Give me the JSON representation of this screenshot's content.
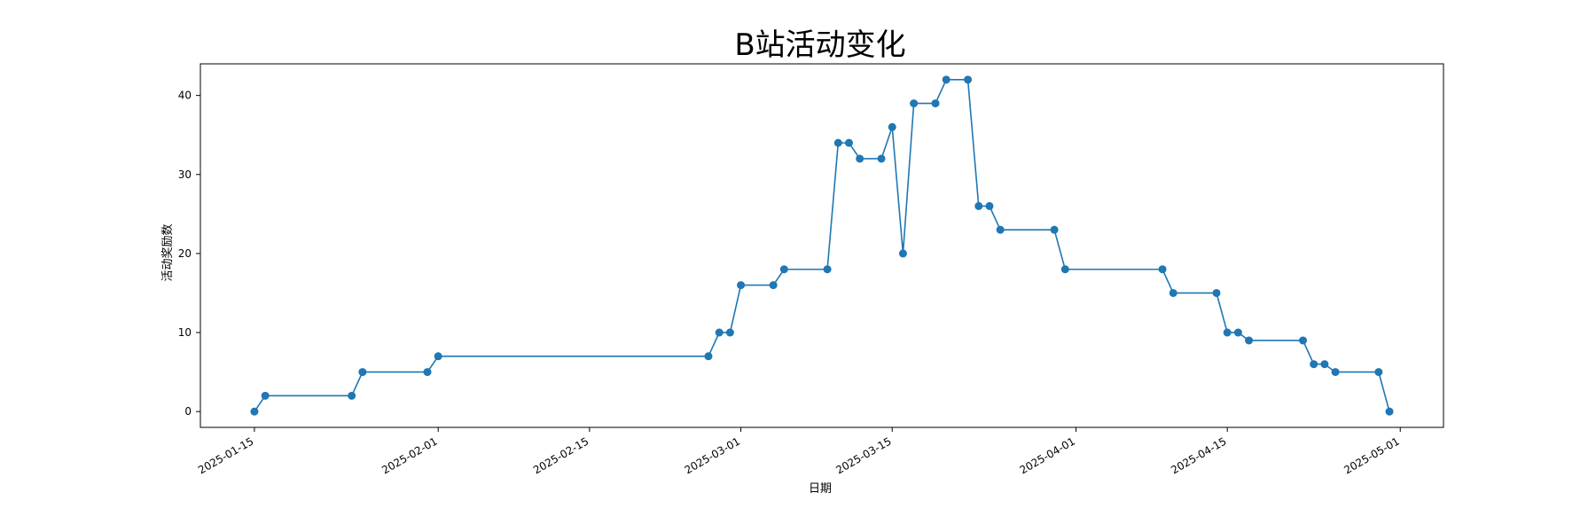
{
  "chart_data": {
    "type": "line",
    "title": "B站活动变化",
    "xlabel": "日期",
    "ylabel": "活动奖励数",
    "grid": false,
    "line_color": "#1f77b4",
    "x_ticks": [
      "2025-01-15",
      "2025-02-01",
      "2025-02-15",
      "2025-03-01",
      "2025-03-15",
      "2025-04-01",
      "2025-04-15",
      "2025-05-01"
    ],
    "y_ticks": [
      0,
      10,
      20,
      30,
      40
    ],
    "xlim": [
      "2025-01-10",
      "2025-05-05"
    ],
    "ylim": [
      -2,
      44
    ],
    "series": [
      {
        "x": [
          "2025-01-15",
          "2025-01-16",
          "2025-01-24",
          "2025-01-25",
          "2025-01-31",
          "2025-02-01",
          "2025-02-26",
          "2025-02-27",
          "2025-02-28",
          "2025-03-01",
          "2025-03-04",
          "2025-03-05",
          "2025-03-09",
          "2025-03-10",
          "2025-03-11",
          "2025-03-12",
          "2025-03-14",
          "2025-03-15",
          "2025-03-16",
          "2025-03-17",
          "2025-03-19",
          "2025-03-20",
          "2025-03-22",
          "2025-03-23",
          "2025-03-24",
          "2025-03-25",
          "2025-03-30",
          "2025-03-31",
          "2025-04-09",
          "2025-04-10",
          "2025-04-14",
          "2025-04-15",
          "2025-04-16",
          "2025-04-17",
          "2025-04-22",
          "2025-04-23",
          "2025-04-24",
          "2025-04-25",
          "2025-04-29",
          "2025-04-30"
        ],
        "values": [
          0,
          2,
          2,
          5,
          5,
          7,
          7,
          10,
          10,
          16,
          16,
          18,
          18,
          34,
          34,
          32,
          32,
          36,
          20,
          39,
          39,
          42,
          42,
          26,
          26,
          23,
          23,
          18,
          18,
          15,
          15,
          10,
          10,
          9,
          9,
          6,
          6,
          5,
          5,
          0
        ]
      }
    ]
  }
}
